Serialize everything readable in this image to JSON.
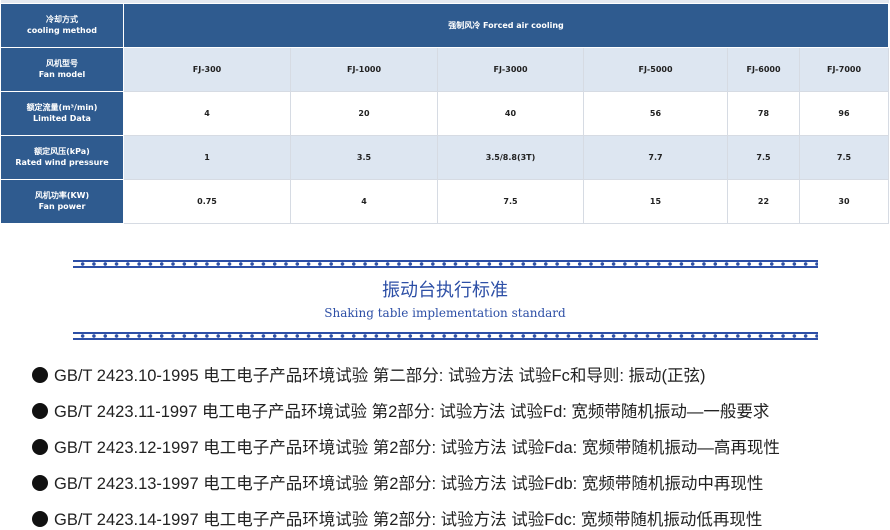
{
  "table": {
    "cooling": {
      "label_cn": "冷却方式",
      "label_en": "cooling method",
      "value": "强制风冷  Forced air cooling"
    },
    "rows": [
      {
        "label_cn": "风机型号",
        "label_en": "Fan model",
        "values": [
          "FJ-300",
          "FJ-1000",
          "FJ-3000",
          "FJ-5000",
          "FJ-6000",
          "FJ-7000"
        ]
      },
      {
        "label_cn": "额定流量(m³/min)",
        "label_en": "Limited Data",
        "values": [
          "4",
          "20",
          "40",
          "56",
          "78",
          "96"
        ]
      },
      {
        "label_cn": "额定风压(kPa)",
        "label_en": "Rated wind pressure",
        "values": [
          "1",
          "3.5",
          "3.5/8.8(3T)",
          "7.7",
          "7.5",
          "7.5"
        ]
      },
      {
        "label_cn": "风机功率(KW)",
        "label_en": "Fan power",
        "values": [
          "0.75",
          "4",
          "7.5",
          "15",
          "22",
          "30"
        ]
      }
    ]
  },
  "section": {
    "title": "振动台执行标准",
    "subtitle": "Shaking table implementation standard"
  },
  "standards": [
    "GB/T 2423.10-1995 电工电子产品环境试验 第二部分: 试验方法 试验Fc和导则: 振动(正弦)",
    "GB/T 2423.11-1997 电工电子产品环境试验 第2部分: 试验方法 试验Fd: 宽频带随机振动—一般要求",
    "GB/T 2423.12-1997 电工电子产品环境试验 第2部分: 试验方法 试验Fda: 宽频带随机振动—高再现性",
    "GB/T 2423.13-1997 电工电子产品环境试验 第2部分: 试验方法 试验Fdb: 宽频带随机振动中再现性",
    "GB/T 2423.14-1997 电工电子产品环境试验 第2部分: 试验方法 试验Fdc: 宽频带随机振动低再现性"
  ],
  "colors": {
    "header": "#2f5b8f",
    "accent": "#2d4fa6",
    "alt_row": "#dde6f1"
  }
}
